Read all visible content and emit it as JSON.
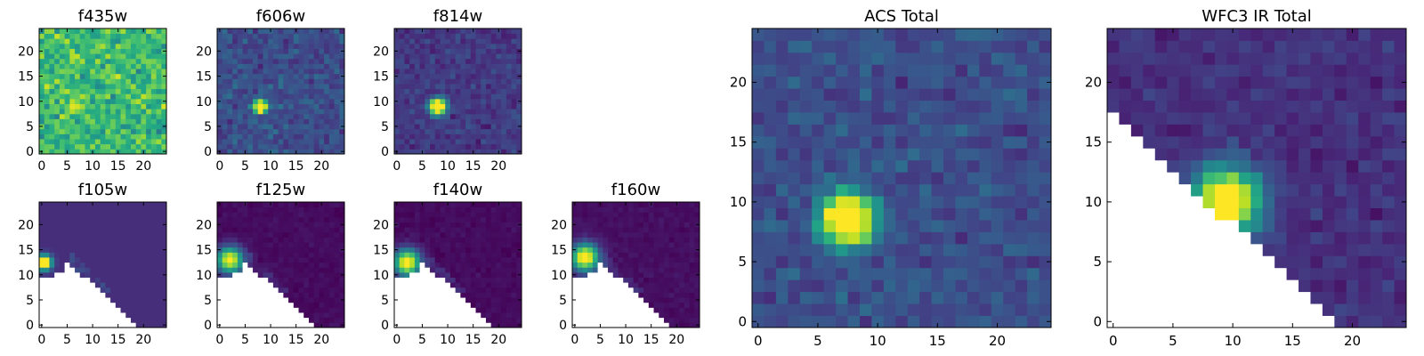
{
  "figure": {
    "colormap": "viridis",
    "mask_color": "#ffffff",
    "frame_color": "#000000"
  },
  "chart_data": [
    {
      "type": "heatmap",
      "title": "f435w",
      "xlim": [
        -0.5,
        24.5
      ],
      "ylim": [
        -0.5,
        24.5
      ],
      "xticks": [
        0,
        5,
        10,
        15,
        20
      ],
      "yticks": [
        0,
        5,
        10,
        15,
        20
      ],
      "grid_size": [
        25,
        25
      ],
      "background_level": 0.68,
      "noise": 0.14,
      "source": {
        "x": 7,
        "y": 9,
        "amplitude": 0.15,
        "sigma": 1.5
      },
      "mask": "none",
      "seed": 11
    },
    {
      "type": "heatmap",
      "title": "f606w",
      "xlim": [
        -0.5,
        24.5
      ],
      "ylim": [
        -0.5,
        24.5
      ],
      "xticks": [
        0,
        5,
        10,
        15,
        20
      ],
      "yticks": [
        0,
        5,
        10,
        15,
        20
      ],
      "grid_size": [
        25,
        25
      ],
      "background_level": 0.24,
      "noise": 0.08,
      "source": {
        "x": 8,
        "y": 9,
        "amplitude": 1.2,
        "sigma": 0.9
      },
      "mask": "none",
      "seed": 23
    },
    {
      "type": "heatmap",
      "title": "f814w",
      "xlim": [
        -0.5,
        24.5
      ],
      "ylim": [
        -0.5,
        24.5
      ],
      "xticks": [
        0,
        5,
        10,
        15,
        20
      ],
      "yticks": [
        0,
        5,
        10,
        15,
        20
      ],
      "grid_size": [
        25,
        25
      ],
      "background_level": 0.17,
      "noise": 0.06,
      "source": {
        "x": 8,
        "y": 9,
        "amplitude": 1.3,
        "sigma": 1.1
      },
      "mask": "none",
      "seed": 37
    },
    {
      "type": "heatmap",
      "title": "f105w",
      "xlim": [
        -0.5,
        24.5
      ],
      "ylim": [
        -0.5,
        24.5
      ],
      "xticks": [
        0,
        5,
        10,
        15,
        20
      ],
      "yticks": [
        0,
        5,
        10,
        15,
        20
      ],
      "grid_size": [
        25,
        25
      ],
      "background_level": 0.13,
      "noise": 0.0,
      "source": {
        "x": 0.5,
        "y": 12.5,
        "amplitude": 1.2,
        "sigma": 1.0
      },
      "mask": "diagonal_ir",
      "seed": 41
    },
    {
      "type": "heatmap",
      "title": "f125w",
      "xlim": [
        -0.5,
        24.5
      ],
      "ylim": [
        -0.5,
        24.5
      ],
      "xticks": [
        0,
        5,
        10,
        15,
        20
      ],
      "yticks": [
        0,
        5,
        10,
        15,
        20
      ],
      "grid_size": [
        25,
        25
      ],
      "background_level": 0.03,
      "noise": 0.02,
      "source": {
        "x": 2,
        "y": 13,
        "amplitude": 1.0,
        "sigma": 1.8
      },
      "mask": "diagonal_ir",
      "seed": 53
    },
    {
      "type": "heatmap",
      "title": "f140w",
      "xlim": [
        -0.5,
        24.5
      ],
      "ylim": [
        -0.5,
        24.5
      ],
      "xticks": [
        0,
        5,
        10,
        15,
        20
      ],
      "yticks": [
        0,
        5,
        10,
        15,
        20
      ],
      "grid_size": [
        25,
        25
      ],
      "background_level": 0.03,
      "noise": 0.02,
      "source": {
        "x": 2,
        "y": 12.5,
        "amplitude": 1.05,
        "sigma": 1.8
      },
      "mask": "diagonal_ir",
      "seed": 67
    },
    {
      "type": "heatmap",
      "title": "f160w",
      "xlim": [
        -0.5,
        24.5
      ],
      "ylim": [
        -0.5,
        24.5
      ],
      "xticks": [
        0,
        5,
        10,
        15,
        20
      ],
      "yticks": [
        0,
        5,
        10,
        15,
        20
      ],
      "grid_size": [
        25,
        25
      ],
      "background_level": 0.04,
      "noise": 0.02,
      "source": {
        "x": 2,
        "y": 13.5,
        "amplitude": 1.05,
        "sigma": 1.9
      },
      "mask": "diagonal_ir",
      "seed": 79
    },
    {
      "type": "heatmap",
      "title": "ACS Total",
      "xlim": [
        -0.5,
        24.5
      ],
      "ylim": [
        -0.5,
        24.5
      ],
      "xticks": [
        0,
        5,
        10,
        15,
        20
      ],
      "yticks": [
        0,
        5,
        10,
        15,
        20
      ],
      "grid_size": [
        25,
        25
      ],
      "background_level": 0.24,
      "noise": 0.07,
      "source": {
        "x": 7.5,
        "y": 8.5,
        "amplitude": 1.2,
        "sigma": 1.5
      },
      "mask": "none",
      "seed": 97
    },
    {
      "type": "heatmap",
      "title": "WFC3 IR Total",
      "xlim": [
        -0.5,
        24.5
      ],
      "ylim": [
        -0.5,
        24.5
      ],
      "xticks": [
        0,
        5,
        10,
        15,
        20
      ],
      "yticks": [
        0,
        5,
        10,
        15,
        20
      ],
      "grid_size": [
        25,
        25
      ],
      "background_level": 0.14,
      "noise": 0.05,
      "source": {
        "x": 9.5,
        "y": 10,
        "amplitude": 1.1,
        "sigma": 1.9
      },
      "mask": "diagonal_wfc3",
      "seed": 113
    }
  ]
}
